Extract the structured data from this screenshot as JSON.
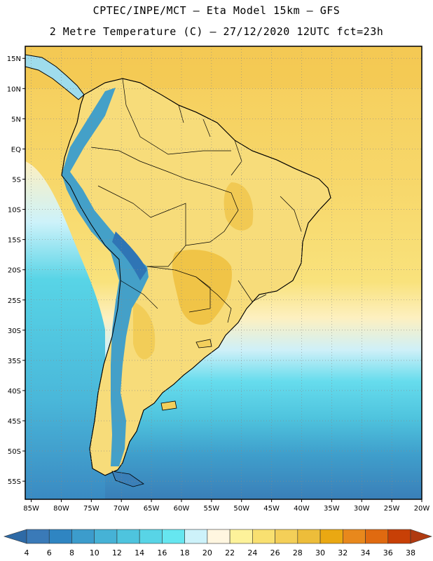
{
  "header": {
    "line1": "CPTEC/INPE/MCT –  Eta Model 15km – GFS",
    "line2": "2 Metre Temperature (C) – 27/12/2020 12UTC fct=23h"
  },
  "map": {
    "lon_range": [
      -86,
      -20
    ],
    "lat_range": [
      -58,
      17
    ],
    "lat_labels": [
      "15N",
      "10N",
      "5N",
      "EQ",
      "5S",
      "10S",
      "15S",
      "20S",
      "25S",
      "30S",
      "35S",
      "40S",
      "45S",
      "50S",
      "55S"
    ],
    "lat_values": [
      15,
      10,
      5,
      0,
      -5,
      -10,
      -15,
      -20,
      -25,
      -30,
      -35,
      -40,
      -45,
      -50,
      -55
    ],
    "lon_labels": [
      "85W",
      "80W",
      "75W",
      "70W",
      "65W",
      "60W",
      "55W",
      "50W",
      "45W",
      "40W",
      "35W",
      "30W",
      "25W",
      "20W"
    ],
    "lon_values": [
      -85,
      -80,
      -75,
      -70,
      -65,
      -60,
      -55,
      -50,
      -45,
      -40,
      -35,
      -30,
      -25,
      -20
    ]
  },
  "colorbar": {
    "labels": [
      "4",
      "6",
      "8",
      "10",
      "12",
      "14",
      "16",
      "18",
      "20",
      "22",
      "24",
      "26",
      "28",
      "30",
      "32",
      "34",
      "36",
      "38"
    ],
    "colors": [
      "#3a7ab8",
      "#2f85c2",
      "#3c9ccc",
      "#46b2d6",
      "#4ec4de",
      "#58d4e6",
      "#66e6f0",
      "#cdf2fa",
      "#fff6e0",
      "#fdf29a",
      "#f9e070",
      "#f4cf58",
      "#edbd3a",
      "#eaa812",
      "#e8881c",
      "#e06a10",
      "#c84006"
    ],
    "low_color": "#2e6aa6",
    "high_color": "#b03a10"
  }
}
